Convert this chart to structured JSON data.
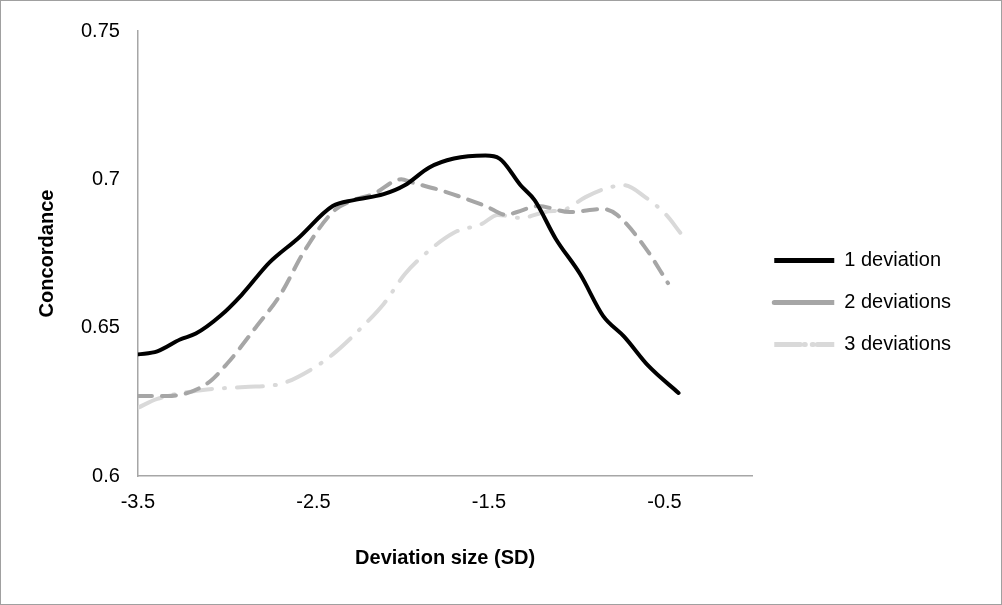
{
  "chart_data": {
    "type": "line",
    "xlabel": "Deviation size (SD)",
    "ylabel": "Concordance",
    "xlim": [
      -3.5,
      0
    ],
    "xticks": [
      -3.5,
      -2.5,
      -1.5,
      -0.5
    ],
    "ylim": [
      0.6,
      0.75
    ],
    "yticks": [
      0.6,
      0.65,
      0.7,
      0.75
    ],
    "grid": false,
    "legend": "right",
    "marker": "none",
    "series": [
      {
        "name": "1 deviation",
        "color": "#000000",
        "line_style": "solid",
        "x": [
          -3.5,
          -3.39,
          -3.26,
          -3.17,
          -3.03,
          -2.91,
          -2.75,
          -2.59,
          -2.39,
          -2.27,
          -2.1,
          -1.98,
          -1.84,
          -1.7,
          -1.52,
          -1.44,
          -1.32,
          -1.24,
          -1.12,
          -0.98,
          -0.85,
          -0.73,
          -0.59,
          -0.42
        ],
        "values": [
          0.641,
          0.642,
          0.646,
          0.648,
          0.654,
          0.661,
          0.672,
          0.68,
          0.691,
          0.693,
          0.695,
          0.698,
          0.704,
          0.707,
          0.708,
          0.707,
          0.698,
          0.693,
          0.68,
          0.668,
          0.654,
          0.647,
          0.637,
          0.628
        ]
      },
      {
        "name": "2 deviations",
        "color": "#a6a6a6",
        "line_style": "dashed",
        "x": [
          -3.5,
          -3.44,
          -3.33,
          -3.11,
          -2.99,
          -2.83,
          -2.69,
          -2.55,
          -2.39,
          -2.27,
          -2.16,
          -2.0,
          -1.94,
          -1.76,
          -1.52,
          -1.4,
          -1.34,
          -1.22,
          -1.04,
          -0.85,
          -0.77,
          -0.61,
          -0.48
        ],
        "values": [
          0.627,
          0.627,
          0.627,
          0.631,
          0.638,
          0.65,
          0.661,
          0.676,
          0.689,
          0.693,
          0.695,
          0.7,
          0.699,
          0.696,
          0.691,
          0.688,
          0.689,
          0.691,
          0.689,
          0.69,
          0.688,
          0.677,
          0.665
        ]
      },
      {
        "name": "3 deviations",
        "color": "#d9d9d9",
        "line_style": "dashed",
        "x": [
          -3.5,
          -3.39,
          -3.13,
          -2.89,
          -2.69,
          -2.51,
          -2.39,
          -2.21,
          -2.1,
          -1.98,
          -1.88,
          -1.7,
          -1.54,
          -1.45,
          -1.32,
          -1.18,
          -1.06,
          -0.95,
          -0.83,
          -0.73,
          -0.61,
          -0.49,
          -0.41
        ],
        "values": [
          0.623,
          0.626,
          0.629,
          0.63,
          0.631,
          0.636,
          0.641,
          0.651,
          0.658,
          0.668,
          0.674,
          0.682,
          0.685,
          0.688,
          0.687,
          0.689,
          0.69,
          0.694,
          0.697,
          0.698,
          0.694,
          0.688,
          0.682
        ]
      }
    ]
  }
}
